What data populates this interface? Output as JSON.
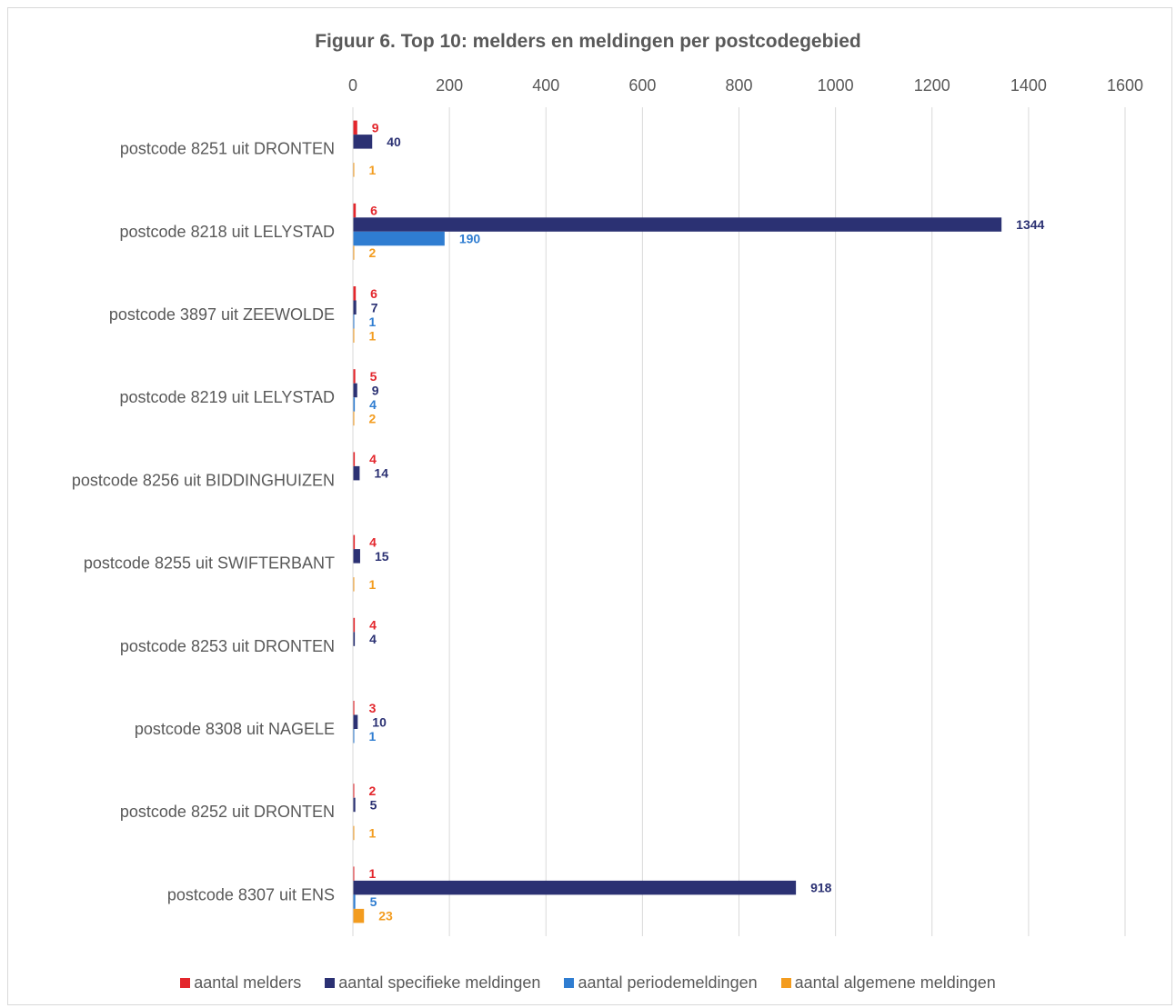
{
  "chart_data": {
    "type": "bar",
    "orientation": "horizontal",
    "title": "Figuur 6. Top 10: melders en meldingen per postcodegebied",
    "xlabel": "",
    "ylabel": "",
    "xlim": [
      0,
      1600
    ],
    "xticks": [
      "0",
      "200",
      "400",
      "600",
      "800",
      "1000",
      "1200",
      "1400",
      "1600"
    ],
    "grid": true,
    "legend_position": "bottom",
    "categories": [
      "postcode 8251 uit DRONTEN",
      "postcode 8218 uit LELYSTAD",
      "postcode 3897 uit ZEEWOLDE",
      "postcode 8219 uit LELYSTAD",
      "postcode 8256 uit BIDDINGHUIZEN",
      "postcode 8255 uit SWIFTERBANT",
      "postcode 8253 uit DRONTEN",
      "postcode 8308 uit NAGELE",
      "postcode 8252 uit DRONTEN",
      "postcode 8307 uit ENS"
    ],
    "series": [
      {
        "name": "aantal melders",
        "color": "#e3262c",
        "values": [
          9,
          6,
          6,
          5,
          4,
          4,
          4,
          3,
          2,
          1
        ]
      },
      {
        "name": "aantal specifieke meldingen",
        "color": "#2b3173",
        "values": [
          40,
          1344,
          7,
          9,
          14,
          15,
          4,
          10,
          5,
          918
        ]
      },
      {
        "name": "aantal periodemeldingen",
        "color": "#2f7dd1",
        "values": [
          null,
          190,
          1,
          4,
          null,
          null,
          null,
          1,
          null,
          5
        ]
      },
      {
        "name": "aantal algemene meldingen",
        "color": "#f39c1f",
        "values": [
          1,
          2,
          1,
          2,
          null,
          1,
          null,
          null,
          1,
          23
        ]
      }
    ]
  }
}
